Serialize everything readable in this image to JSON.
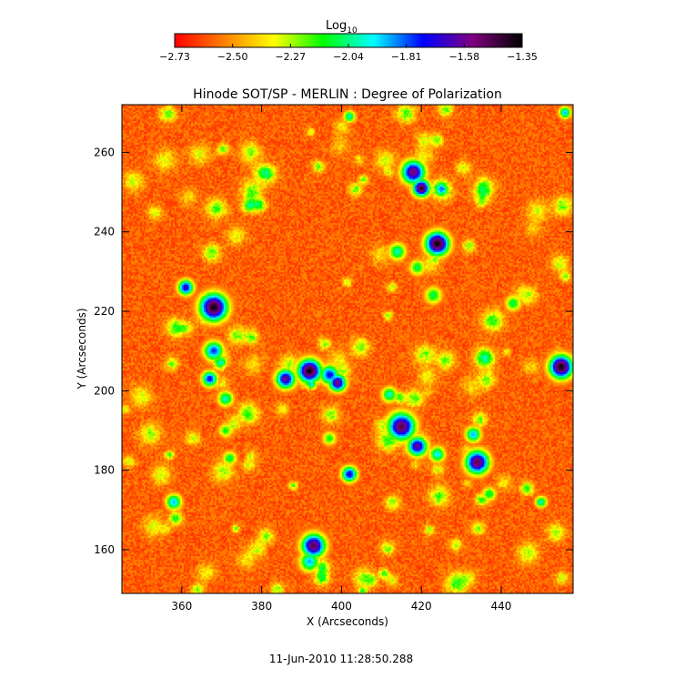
{
  "chart_data": {
    "type": "heatmap",
    "title": "Hinode SOT/SP - MERLIN : Degree of Polarization",
    "xlabel": "X (Arcseconds)",
    "ylabel": "Y (Arcseconds)",
    "xlim": [
      345,
      458
    ],
    "ylim": [
      149,
      272
    ],
    "xticks": [
      360,
      380,
      400,
      420,
      440
    ],
    "yticks": [
      160,
      180,
      200,
      220,
      240,
      260
    ],
    "colorbar": {
      "label_base": "Log",
      "label_sub": "10",
      "range": [
        -2.73,
        -1.35
      ],
      "tick_labels": [
        "−2.73",
        "−2.50",
        "−2.27",
        "−2.04",
        "−1.81",
        "−1.58",
        "−1.35"
      ],
      "tick_values": [
        -2.73,
        -2.5,
        -2.27,
        -2.04,
        -1.81,
        -1.58,
        -1.35
      ],
      "colormap": [
        "#ff0000",
        "#ff8000",
        "#ffff00",
        "#00ff00",
        "#00ffff",
        "#0000ff",
        "#800080",
        "#000000"
      ]
    },
    "features": [
      {
        "x": 368,
        "y": 221,
        "peak": -1.4,
        "size": 3.5
      },
      {
        "x": 361,
        "y": 226,
        "peak": -1.7,
        "size": 2.0
      },
      {
        "x": 368,
        "y": 210,
        "peak": -1.8,
        "size": 2.5
      },
      {
        "x": 367,
        "y": 203,
        "peak": -1.75,
        "size": 2.0
      },
      {
        "x": 371,
        "y": 198,
        "peak": -2.0,
        "size": 2.0
      },
      {
        "x": 386,
        "y": 203,
        "peak": -1.6,
        "size": 2.5
      },
      {
        "x": 392,
        "y": 205,
        "peak": -1.4,
        "size": 3.0
      },
      {
        "x": 397,
        "y": 204,
        "peak": -1.75,
        "size": 2.5
      },
      {
        "x": 399,
        "y": 202,
        "peak": -1.55,
        "size": 2.2
      },
      {
        "x": 418,
        "y": 255,
        "peak": -1.55,
        "size": 3.0
      },
      {
        "x": 420,
        "y": 251,
        "peak": -1.45,
        "size": 2.2
      },
      {
        "x": 424,
        "y": 237,
        "peak": -1.4,
        "size": 3.0
      },
      {
        "x": 415,
        "y": 191,
        "peak": -1.5,
        "size": 3.5
      },
      {
        "x": 419,
        "y": 186,
        "peak": -1.6,
        "size": 2.5
      },
      {
        "x": 434,
        "y": 182,
        "peak": -1.5,
        "size": 3.0
      },
      {
        "x": 393,
        "y": 161,
        "peak": -1.5,
        "size": 3.0
      },
      {
        "x": 392,
        "y": 157,
        "peak": -1.9,
        "size": 2.5
      },
      {
        "x": 455,
        "y": 206,
        "peak": -1.4,
        "size": 3.0
      },
      {
        "x": 402,
        "y": 179,
        "peak": -1.7,
        "size": 2.0
      },
      {
        "x": 358,
        "y": 172,
        "peak": -1.9,
        "size": 2.0
      },
      {
        "x": 433,
        "y": 189,
        "peak": -1.9,
        "size": 2.0
      },
      {
        "x": 414,
        "y": 235,
        "peak": -2.0,
        "size": 2.2
      },
      {
        "x": 419,
        "y": 231,
        "peak": -2.1,
        "size": 2.0
      },
      {
        "x": 423,
        "y": 224,
        "peak": -2.1,
        "size": 2.2
      },
      {
        "x": 412,
        "y": 199,
        "peak": -2.0,
        "size": 2.0
      },
      {
        "x": 424,
        "y": 184,
        "peak": -1.95,
        "size": 2.0
      },
      {
        "x": 402,
        "y": 269,
        "peak": -2.0,
        "size": 1.5
      },
      {
        "x": 443,
        "y": 222,
        "peak": -2.1,
        "size": 2.0
      },
      {
        "x": 450,
        "y": 172,
        "peak": -2.0,
        "size": 1.5
      },
      {
        "x": 456,
        "y": 270,
        "peak": -1.9,
        "size": 1.5
      },
      {
        "x": 372,
        "y": 183,
        "peak": -2.1,
        "size": 1.8
      },
      {
        "x": 371,
        "y": 190,
        "peak": -2.15,
        "size": 1.8
      },
      {
        "x": 397,
        "y": 188,
        "peak": -2.15,
        "size": 1.8
      },
      {
        "x": 437,
        "y": 174,
        "peak": -2.1,
        "size": 1.8
      }
    ]
  },
  "footer": {
    "timestamp": "11-Jun-2010 11:28:50.288"
  }
}
